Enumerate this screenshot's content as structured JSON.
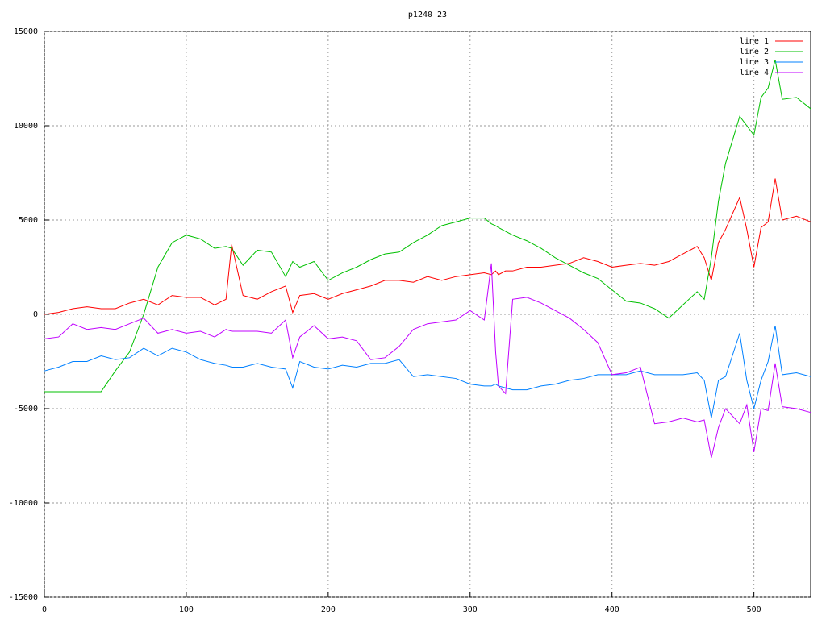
{
  "chart_data": {
    "type": "line",
    "title": "p1240_23",
    "x": [
      0,
      10,
      20,
      30,
      40,
      50,
      60,
      70,
      80,
      90,
      100,
      110,
      120,
      128,
      132,
      140,
      150,
      160,
      170,
      175,
      180,
      190,
      200,
      210,
      220,
      230,
      240,
      250,
      260,
      270,
      280,
      290,
      300,
      310,
      315,
      318,
      320,
      325,
      330,
      340,
      350,
      360,
      370,
      380,
      390,
      400,
      410,
      420,
      430,
      440,
      450,
      460,
      465,
      470,
      475,
      480,
      490,
      495,
      500,
      505,
      510,
      515,
      520,
      530,
      540
    ],
    "series": [
      {
        "name": "line 1",
        "color": "#ff0000",
        "values": [
          0,
          100,
          300,
          400,
          300,
          300,
          600,
          800,
          500,
          1000,
          900,
          900,
          500,
          800,
          3700,
          1000,
          800,
          1200,
          1500,
          100,
          1000,
          1100,
          800,
          1100,
          1300,
          1500,
          1800,
          1800,
          1700,
          2000,
          1800,
          2000,
          2100,
          2200,
          2100,
          2300,
          2100,
          2300,
          2300,
          2500,
          2500,
          2600,
          2700,
          3000,
          2800,
          2500,
          2600,
          2700,
          2600,
          2800,
          3200,
          3600,
          3000,
          1800,
          3800,
          4500,
          6200,
          4500,
          2500,
          4600,
          4900,
          7200,
          5000,
          5200,
          4900
        ]
      },
      {
        "name": "line 2",
        "color": "#00c000",
        "values": [
          -4100,
          -4100,
          -4100,
          -4100,
          -4100,
          -3000,
          -2000,
          0,
          2500,
          3800,
          4200,
          4000,
          3500,
          3600,
          3500,
          2600,
          3400,
          3300,
          2000,
          2800,
          2500,
          2800,
          1800,
          2200,
          2500,
          2900,
          3200,
          3300,
          3800,
          4200,
          4700,
          4900,
          5100,
          5100,
          4800,
          4700,
          4600,
          4400,
          4200,
          3900,
          3500,
          3000,
          2600,
          2200,
          1900,
          1300,
          700,
          600,
          300,
          -200,
          500,
          1200,
          800,
          3000,
          6000,
          8000,
          10500,
          10000,
          9500,
          11500,
          12000,
          13500,
          11400,
          11500,
          10900
        ]
      },
      {
        "name": "line 3",
        "color": "#0080ff",
        "values": [
          -3000,
          -2800,
          -2500,
          -2500,
          -2200,
          -2400,
          -2300,
          -1800,
          -2200,
          -1800,
          -2000,
          -2400,
          -2600,
          -2700,
          -2800,
          -2800,
          -2600,
          -2800,
          -2900,
          -3900,
          -2500,
          -2800,
          -2900,
          -2700,
          -2800,
          -2600,
          -2600,
          -2400,
          -3300,
          -3200,
          -3300,
          -3400,
          -3700,
          -3800,
          -3800,
          -3700,
          -3800,
          -3900,
          -4000,
          -4000,
          -3800,
          -3700,
          -3500,
          -3400,
          -3200,
          -3200,
          -3200,
          -3000,
          -3200,
          -3200,
          -3200,
          -3100,
          -3500,
          -5500,
          -3500,
          -3300,
          -1000,
          -3500,
          -5000,
          -3500,
          -2500,
          -600,
          -3200,
          -3100,
          -3300
        ]
      },
      {
        "name": "line 4",
        "color": "#c000ff",
        "values": [
          -1300,
          -1200,
          -500,
          -800,
          -700,
          -800,
          -500,
          -200,
          -1000,
          -800,
          -1000,
          -900,
          -1200,
          -800,
          -900,
          -900,
          -900,
          -1000,
          -300,
          -2300,
          -1200,
          -600,
          -1300,
          -1200,
          -1400,
          -2400,
          -2300,
          -1700,
          -800,
          -500,
          -400,
          -300,
          200,
          -300,
          2700,
          -2000,
          -3800,
          -4200,
          800,
          900,
          600,
          200,
          -200,
          -800,
          -1500,
          -3200,
          -3100,
          -2800,
          -5800,
          -5700,
          -5500,
          -5700,
          -5600,
          -7600,
          -6000,
          -5000,
          -5800,
          -4800,
          -7300,
          -5000,
          -5100,
          -2600,
          -4900,
          -5000,
          -5200
        ]
      }
    ],
    "xlim": [
      0,
      540
    ],
    "ylim": [
      -15000,
      15000
    ],
    "xticks": [
      0,
      100,
      200,
      300,
      400,
      500
    ],
    "yticks": [
      -15000,
      -10000,
      -5000,
      0,
      5000,
      10000,
      15000
    ],
    "grid": true,
    "legend": "top-right"
  }
}
